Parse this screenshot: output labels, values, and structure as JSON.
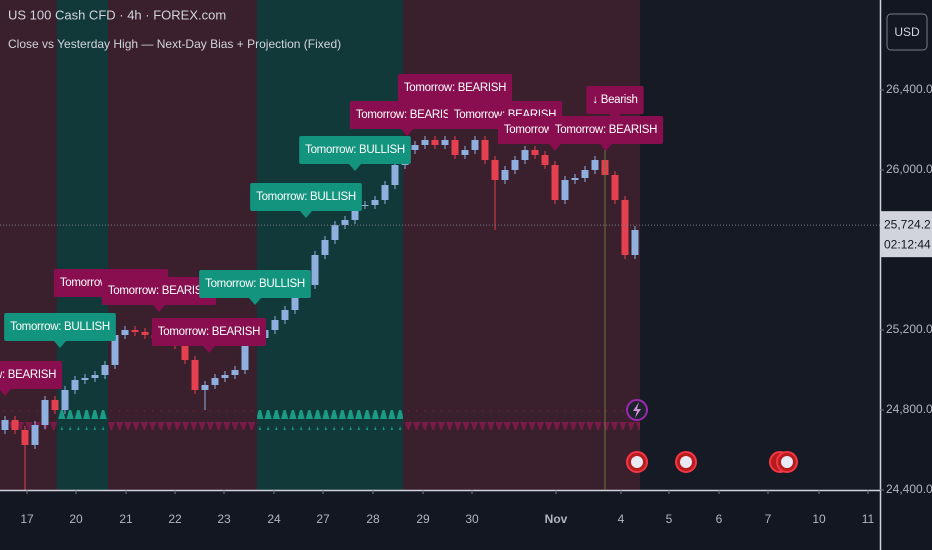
{
  "chart_data": {
    "type": "candlestick",
    "title": "US 100 Cash CFD · 4h · FOREX.com",
    "subtitle": "Close vs Yesterday High — Next-Day Bias + Projection (Fixed)",
    "currency": "USD",
    "up_color": "#8fb0de",
    "down_color": "#e5404f",
    "grid": false,
    "open": [
      24700,
      24750,
      24700,
      24625,
      24725,
      24850,
      24800,
      24900,
      24950,
      24960,
      24975,
      25025,
      25175,
      25200,
      25190,
      25175,
      25160,
      25150,
      25125,
      25050,
      24900,
      24925,
      24960,
      24975,
      25000,
      25150,
      25160,
      25200,
      25250,
      25300,
      25400,
      25425,
      25575,
      25650,
      25725,
      25750,
      25825,
      25825,
      25850,
      25925,
      26025,
      26100,
      26125,
      26150,
      26125,
      26150,
      26075,
      26100,
      26150,
      26050,
      25950,
      26000,
      26050,
      26100,
      26075,
      26025,
      25850,
      25950,
      25960,
      26000,
      26050,
      25975,
      25850,
      25575
    ],
    "high": [
      24770,
      24770,
      24720,
      24745,
      24870,
      24870,
      24920,
      24970,
      24980,
      24995,
      25045,
      25195,
      25220,
      25220,
      25210,
      25195,
      25180,
      25170,
      25145,
      25070,
      24945,
      24980,
      24995,
      25020,
      25170,
      25180,
      25220,
      25270,
      25320,
      25420,
      25445,
      25595,
      25670,
      25745,
      25770,
      25845,
      25845,
      25870,
      25945,
      26045,
      26120,
      26145,
      26170,
      26170,
      26170,
      26170,
      26120,
      26170,
      26170,
      26070,
      26020,
      26070,
      26120,
      26120,
      26095,
      26045,
      25970,
      25980,
      26020,
      26070,
      26070,
      25995,
      25870,
      25720
    ],
    "low": [
      24680,
      24680,
      24400,
      24605,
      24705,
      24780,
      24780,
      24880,
      24930,
      24940,
      24955,
      25005,
      25155,
      25170,
      25155,
      25140,
      25130,
      25105,
      25030,
      24880,
      24800,
      24905,
      24940,
      24955,
      24980,
      25130,
      25140,
      25180,
      25230,
      25280,
      25380,
      25405,
      25555,
      25630,
      25705,
      25730,
      25805,
      25805,
      25830,
      25905,
      26005,
      26080,
      26105,
      26105,
      26105,
      26055,
      26055,
      26080,
      26030,
      25700,
      25930,
      25980,
      26030,
      26055,
      26005,
      25830,
      25830,
      25930,
      25940,
      25980,
      25955,
      25830,
      25555,
      25555
    ],
    "close": [
      24750,
      24700,
      24625,
      24725,
      24850,
      24800,
      24900,
      24950,
      24960,
      24975,
      25025,
      25175,
      25200,
      25190,
      25175,
      25160,
      25150,
      25125,
      25050,
      24900,
      24925,
      24960,
      24975,
      25000,
      25150,
      25160,
      25200,
      25250,
      25300,
      25400,
      25425,
      25575,
      25650,
      25725,
      25750,
      25825,
      25825,
      25850,
      25925,
      26025,
      26100,
      26125,
      26150,
      26125,
      26150,
      26075,
      26100,
      26150,
      26050,
      25950,
      26000,
      26050,
      26100,
      26075,
      26025,
      25850,
      25950,
      25960,
      26000,
      26050,
      25975,
      25850,
      25575,
      25700
    ],
    "xlim": [
      -0.5,
      87.5
    ],
    "xticks": [
      {
        "value": 2.2,
        "label": "17"
      },
      {
        "value": 7.1,
        "label": "20"
      },
      {
        "value": 12.1,
        "label": "21"
      },
      {
        "value": 17,
        "label": "22"
      },
      {
        "value": 21.9,
        "label": "23"
      },
      {
        "value": 26.9,
        "label": "24"
      },
      {
        "value": 31.8,
        "label": "27"
      },
      {
        "value": 36.8,
        "label": "28"
      },
      {
        "value": 41.8,
        "label": "29"
      },
      {
        "value": 46.7,
        "label": "30"
      },
      {
        "value": 55.1,
        "label": "Nov"
      },
      {
        "value": 61.6,
        "label": "4"
      },
      {
        "value": 66.4,
        "label": "5"
      },
      {
        "value": 71.4,
        "label": "6"
      },
      {
        "value": 76.3,
        "label": "7"
      },
      {
        "value": 81.4,
        "label": "10"
      },
      {
        "value": 86.3,
        "label": "11"
      }
    ],
    "ylim": [
      24400,
      26850
    ],
    "yticks": [
      {
        "value": 26400,
        "label": "26,400.0"
      },
      {
        "value": 26000,
        "label": "26,000.0"
      },
      {
        "value": 25200,
        "label": "25,200.0"
      },
      {
        "value": 24800,
        "label": "24,800.0"
      },
      {
        "value": 24400,
        "label": "24,400.0"
      }
    ],
    "last_price": {
      "value": 25724.2,
      "label": "25,724.2",
      "countdown": "02:12:44"
    },
    "bands": [
      {
        "x": [
          -0.5,
          5.2
        ],
        "color": "#3a1f2d",
        "marker_color": "#7a1a47"
      },
      {
        "x": [
          5.2,
          10.3
        ],
        "color": "#12393a",
        "marker_color": "#1a9c86"
      },
      {
        "x": [
          10.3,
          25.2
        ],
        "color": "#3a1f2d",
        "marker_color": "#7a1a47"
      },
      {
        "x": [
          25.2,
          39.8
        ],
        "color": "#12393a",
        "marker_color": "#1a9c86"
      },
      {
        "x": [
          39.8,
          63.5
        ],
        "color": "#3a1f2d",
        "marker_color": "#7a1a47"
      }
    ],
    "annotations": [
      {
        "text": "Tomorrow: BEARISH",
        "x": 0,
        "y": 24975,
        "color": "#880e4f"
      },
      {
        "text": "Tomorrow: BULLISH",
        "x": 5.5,
        "y": 25215,
        "color": "#13947e"
      },
      {
        "text": "Tomorrow: BEARISH",
        "x": 10.6,
        "y": 25435,
        "color": "#880e4f"
      },
      {
        "text": "Tomorrow: BEARISH",
        "x": 15.4,
        "y": 25395,
        "color": "#880e4f"
      },
      {
        "text": "Tomorrow: BEARISH",
        "x": 20.4,
        "y": 25190,
        "color": "#880e4f"
      },
      {
        "text": "Tomorrow: BULLISH",
        "x": 25,
        "y": 25430,
        "color": "#13947e"
      },
      {
        "text": "Tomorrow: BULLISH",
        "x": 30.1,
        "y": 25865,
        "color": "#13947e"
      },
      {
        "text": "Tomorrow: BULLISH",
        "x": 35,
        "y": 26100,
        "color": "#13947e"
      },
      {
        "text": "Tomorrow: BEARISH",
        "x": 40.2,
        "y": 26275,
        "color": "#880e4f"
      },
      {
        "text": "Tomorrow: BEARISH",
        "x": 45,
        "y": 26410,
        "color": "#880e4f"
      },
      {
        "text": "Tomorrow: BEARISH",
        "x": 50,
        "y": 26275,
        "color": "#880e4f"
      },
      {
        "text": "Tomorrow: BEARISH",
        "x": 55,
        "y": 26200,
        "color": "#880e4f"
      },
      {
        "text": "Tomorrow: BEARISH",
        "x": 60.1,
        "y": 26200,
        "color": "#880e4f"
      },
      {
        "text": "↓ Bearish",
        "x": 61,
        "y": 26350,
        "color": "#880e4f"
      }
    ]
  }
}
